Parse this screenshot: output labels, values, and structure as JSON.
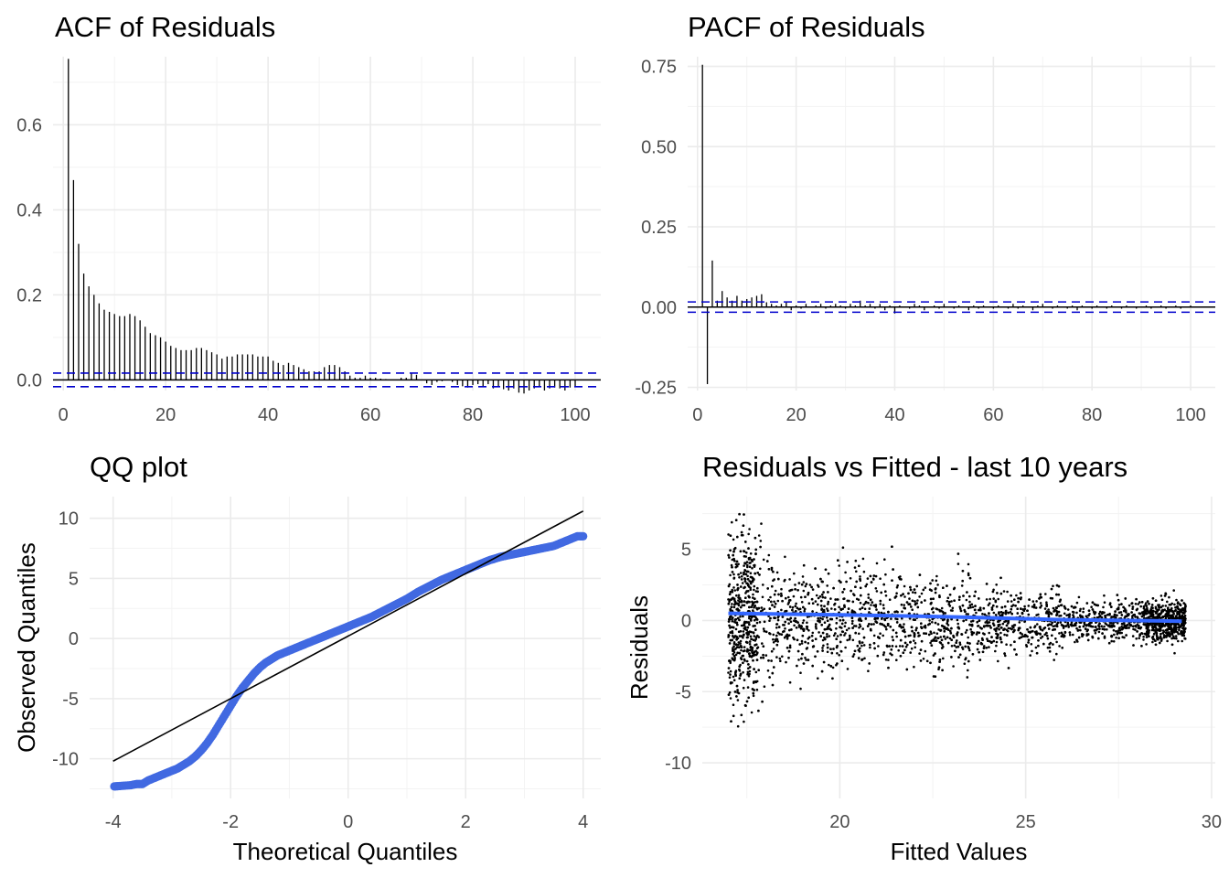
{
  "chart_data": [
    {
      "type": "bar",
      "subtype": "acf",
      "title": "ACF of Residuals",
      "xlabel": "",
      "ylabel": "",
      "xlim": [
        -2,
        105
      ],
      "ylim": [
        -0.025,
        0.76
      ],
      "xticks": [
        0,
        20,
        40,
        60,
        80,
        100
      ],
      "yticks": [
        0.0,
        0.2,
        0.4,
        0.6
      ],
      "ytick_labels": [
        "0.0",
        "0.2",
        "0.4",
        "0.6"
      ],
      "confidence_band": 0.016,
      "band_color": "#0000cc",
      "lags": [
        1,
        2,
        3,
        4,
        5,
        6,
        7,
        8,
        9,
        10,
        11,
        12,
        13,
        14,
        15,
        16,
        17,
        18,
        19,
        20,
        21,
        22,
        23,
        24,
        25,
        26,
        27,
        28,
        29,
        30,
        31,
        32,
        33,
        34,
        35,
        36,
        37,
        38,
        39,
        40,
        41,
        42,
        43,
        44,
        45,
        46,
        47,
        48,
        49,
        50,
        51,
        52,
        53,
        54,
        55,
        56,
        57,
        58,
        59,
        60,
        61,
        62,
        63,
        64,
        65,
        66,
        67,
        68,
        69,
        70,
        71,
        72,
        73,
        74,
        75,
        76,
        77,
        78,
        79,
        80,
        81,
        82,
        83,
        84,
        85,
        86,
        87,
        88,
        89,
        90,
        91,
        92,
        93,
        94,
        95,
        96,
        97,
        98,
        99,
        100
      ],
      "values": [
        0.755,
        0.47,
        0.32,
        0.25,
        0.22,
        0.2,
        0.18,
        0.165,
        0.16,
        0.155,
        0.15,
        0.15,
        0.155,
        0.15,
        0.14,
        0.125,
        0.11,
        0.105,
        0.1,
        0.09,
        0.08,
        0.075,
        0.07,
        0.07,
        0.07,
        0.075,
        0.075,
        0.07,
        0.065,
        0.06,
        0.05,
        0.055,
        0.055,
        0.06,
        0.06,
        0.06,
        0.06,
        0.055,
        0.055,
        0.055,
        0.045,
        0.04,
        0.035,
        0.04,
        0.035,
        0.03,
        0.025,
        0.02,
        0.02,
        0.02,
        0.03,
        0.035,
        0.035,
        0.03,
        0.02,
        0.01,
        0.005,
        0.005,
        0.01,
        0.005,
        0.005,
        0.003,
        0.002,
        0.0,
        0.0,
        0.005,
        0.005,
        0.015,
        0.012,
        0.0,
        -0.008,
        -0.012,
        -0.005,
        -0.003,
        0.0,
        -0.005,
        -0.012,
        -0.015,
        -0.018,
        -0.012,
        -0.01,
        -0.015,
        -0.01,
        -0.02,
        -0.015,
        -0.022,
        -0.025,
        -0.02,
        -0.03,
        -0.032,
        -0.025,
        -0.02,
        -0.015,
        -0.025,
        -0.02,
        -0.018,
        -0.02,
        -0.025,
        -0.018,
        -0.015
      ]
    },
    {
      "type": "bar",
      "subtype": "pacf",
      "title": "PACF of Residuals",
      "xlabel": "",
      "ylabel": "",
      "xlim": [
        -2,
        105
      ],
      "ylim": [
        -0.26,
        0.78
      ],
      "xticks": [
        0,
        20,
        40,
        60,
        80,
        100
      ],
      "yticks": [
        -0.25,
        0.0,
        0.25,
        0.5,
        0.75
      ],
      "ytick_labels": [
        "-0.25",
        "0.00",
        "0.25",
        "0.50",
        "0.75"
      ],
      "confidence_band": 0.016,
      "band_color": "#0000cc",
      "lags": [
        1,
        2,
        3,
        4,
        5,
        6,
        7,
        8,
        9,
        10,
        11,
        12,
        13,
        14,
        15,
        16,
        17,
        18,
        19,
        20,
        21,
        22,
        23,
        24,
        25,
        26,
        27,
        28,
        29,
        30,
        31,
        32,
        33,
        34,
        35,
        36,
        37,
        38,
        39,
        40,
        41,
        42,
        43,
        44,
        45,
        46,
        47,
        48,
        49,
        50,
        51,
        52,
        53,
        54,
        55,
        56,
        57,
        58,
        59,
        60,
        61,
        62,
        63,
        64,
        65,
        66,
        67,
        68,
        69,
        70,
        71,
        72,
        73,
        74,
        75,
        76,
        77,
        78,
        79,
        80,
        81,
        82,
        83,
        84,
        85,
        86,
        87,
        88,
        89,
        90,
        91,
        92,
        93,
        94,
        95,
        96,
        97,
        98,
        99,
        100
      ],
      "values": [
        0.755,
        -0.24,
        0.145,
        0.02,
        0.05,
        0.03,
        0.02,
        0.035,
        0.02,
        0.025,
        0.03,
        0.035,
        0.04,
        0.015,
        0.01,
        0.005,
        0.01,
        0.015,
        -0.01,
        0.005,
        -0.005,
        0.01,
        0.0,
        0.005,
        0.01,
        -0.005,
        0.005,
        0.01,
        0.005,
        -0.005,
        0.01,
        0.005,
        0.02,
        0.005,
        0.01,
        -0.005,
        0.01,
        -0.01,
        0.005,
        -0.02,
        0.005,
        0.0,
        -0.005,
        0.01,
        0.005,
        -0.01,
        0.0,
        0.005,
        -0.005,
        0.01,
        0.0,
        -0.005,
        0.005,
        0.0,
        -0.01,
        0.005,
        -0.005,
        0.005,
        0.0,
        -0.005,
        0.005,
        0.0,
        -0.005,
        0.01,
        -0.005,
        0.005,
        0.0,
        -0.01,
        0.005,
        0.01,
        0.0,
        -0.005,
        0.005,
        0.0,
        -0.005,
        0.005,
        -0.01,
        0.005,
        0.0,
        -0.005,
        0.005,
        0.0,
        -0.005,
        0.005,
        0.0,
        -0.005,
        0.005,
        0.0,
        -0.005,
        0.0,
        0.005,
        -0.005,
        0.0,
        0.005,
        -0.005,
        0.0,
        0.005,
        -0.005,
        0.0,
        0.005
      ]
    },
    {
      "type": "scatter",
      "subtype": "qq",
      "title": "QQ plot",
      "xlabel": "Theoretical Quantiles",
      "ylabel": "Observed Quantiles",
      "xlim": [
        -4.4,
        4.3
      ],
      "ylim": [
        -13.3,
        11.8
      ],
      "xticks": [
        -4,
        -2,
        0,
        2,
        4
      ],
      "yticks": [
        -10,
        -5,
        0,
        5,
        10
      ],
      "point_color": "#4169e1",
      "reference_line": {
        "x": [
          -4,
          4
        ],
        "y": [
          -10.2,
          10.6
        ]
      },
      "points": {
        "x": [
          -3.98,
          -3.7,
          -3.6,
          -3.5,
          -3.4,
          -3.3,
          -3.2,
          -3.1,
          -3.0,
          -2.9,
          -2.8,
          -2.7,
          -2.6,
          -2.5,
          -2.4,
          -2.3,
          -2.2,
          -2.1,
          -2.0,
          -1.9,
          -1.8,
          -1.7,
          -1.6,
          -1.5,
          -1.4,
          -1.3,
          -1.2,
          -1.1,
          -1.0,
          -0.9,
          -0.8,
          -0.6,
          -0.4,
          -0.2,
          0.0,
          0.2,
          0.4,
          0.6,
          0.8,
          1.0,
          1.2,
          1.4,
          1.6,
          1.8,
          2.0,
          2.2,
          2.4,
          2.6,
          2.8,
          3.0,
          3.2,
          3.3,
          3.4,
          3.5,
          3.6,
          3.7,
          3.8,
          3.9,
          4.0
        ],
        "y": [
          -12.3,
          -12.2,
          -12.1,
          -12.1,
          -11.8,
          -11.6,
          -11.4,
          -11.2,
          -11.0,
          -10.8,
          -10.5,
          -10.2,
          -9.8,
          -9.3,
          -8.7,
          -8.0,
          -7.2,
          -6.4,
          -5.6,
          -4.8,
          -4.1,
          -3.5,
          -2.9,
          -2.4,
          -2.0,
          -1.7,
          -1.4,
          -1.2,
          -1.0,
          -0.8,
          -0.6,
          -0.2,
          0.2,
          0.6,
          1.0,
          1.4,
          1.8,
          2.3,
          2.8,
          3.3,
          3.9,
          4.4,
          4.9,
          5.3,
          5.7,
          6.1,
          6.5,
          6.8,
          7.0,
          7.2,
          7.4,
          7.5,
          7.6,
          7.7,
          7.9,
          8.1,
          8.3,
          8.5,
          8.5
        ]
      }
    },
    {
      "type": "scatter",
      "subtype": "residuals_vs_fitted",
      "title": "Residuals vs Fitted - last 10 years",
      "xlabel": "Fitted Values",
      "ylabel": "Residuals",
      "xlim": [
        16.3,
        30.1
      ],
      "ylim": [
        -12.5,
        8.7
      ],
      "xticks": [
        20,
        25,
        30
      ],
      "yticks": [
        -10,
        -5,
        0,
        5
      ],
      "point_color": "#000000",
      "smooth_color": "#3366ff",
      "smooth": {
        "x": [
          17,
          20,
          23,
          26,
          29.2
        ],
        "y": [
          0.5,
          0.4,
          0.25,
          0.05,
          -0.05
        ]
      },
      "n_points": 4000,
      "x_range": [
        17.0,
        29.3
      ]
    }
  ]
}
